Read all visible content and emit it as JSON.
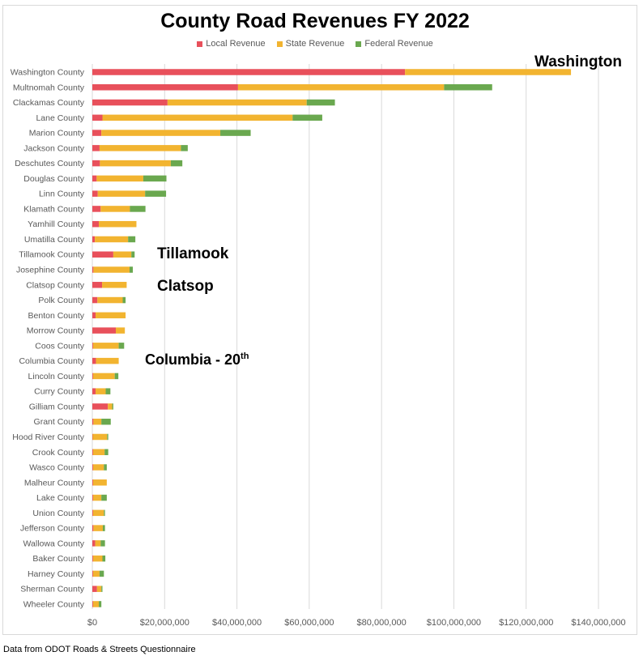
{
  "colors": {
    "local": "#e8505b",
    "state": "#f2b430",
    "federal": "#6aa84f",
    "grid": "#d9d9d9",
    "axis_text": "#595959"
  },
  "footnote": "Data from ODOT Roads & Streets Questionnaire",
  "callouts": {
    "washington": "Washington",
    "tillamook": "Tillamook",
    "clatsop": "Clatsop",
    "columbia": "Columbia - 20",
    "columbia_sup": "th"
  },
  "chart_data": {
    "type": "bar",
    "orientation": "horizontal",
    "stacked": true,
    "title": "County Road Revenues FY 2022",
    "legend_position": "top",
    "grid": true,
    "xlim": [
      0,
      140000000
    ],
    "x_ticks": [
      0,
      20000000,
      40000000,
      60000000,
      80000000,
      100000000,
      120000000,
      140000000
    ],
    "x_tick_labels": [
      "$0",
      "$20,000,000",
      "$40,000,000",
      "$60,000,000",
      "$80,000,000",
      "$100,000,000",
      "$120,000,000",
      "$140,000,000"
    ],
    "categories": [
      "Washington County",
      "Multnomah County",
      "Clackamas County",
      "Lane County",
      "Marion County",
      "Jackson County",
      "Deschutes County",
      "Douglas County",
      "Linn County",
      "Klamath County",
      "Yamhill County",
      "Umatilla County",
      "Tillamook County",
      "Josephine County",
      "Clatsop County",
      "Polk County",
      "Benton County",
      "Morrow County",
      "Coos County",
      "Columbia County",
      "Lincoln County",
      "Curry County",
      "Gilliam County",
      "Grant County",
      "Hood River County",
      "Crook County",
      "Wasco County",
      "Malheur County",
      "Lake County",
      "Union County",
      "Jefferson County",
      "Wallowa County",
      "Baker County",
      "Harney County",
      "Sherman County",
      "Wheeler County"
    ],
    "series": [
      {
        "name": "Local Revenue",
        "values": [
          86500000,
          40300000,
          20800000,
          2800000,
          2500000,
          2000000,
          2100000,
          1200000,
          1500000,
          2300000,
          1800000,
          700000,
          5800000,
          300000,
          2700000,
          1400000,
          900000,
          6500000,
          200000,
          1000000,
          200000,
          900000,
          4300000,
          300000,
          100000,
          200000,
          200000,
          200000,
          200000,
          200000,
          300000,
          800000,
          200000,
          200000,
          1300000,
          200000
        ]
      },
      {
        "name": "State Revenue",
        "values": [
          45900000,
          57000000,
          38500000,
          52600000,
          32900000,
          22500000,
          19600000,
          12900000,
          13100000,
          8100000,
          10400000,
          9200000,
          5000000,
          10000000,
          6800000,
          7000000,
          8300000,
          2500000,
          7100000,
          6300000,
          6000000,
          2800000,
          1200000,
          2200000,
          4000000,
          3200000,
          3000000,
          3800000,
          2300000,
          3000000,
          2600000,
          1500000,
          2600000,
          1800000,
          1200000,
          1600000
        ]
      },
      {
        "name": "Federal Revenue",
        "values": [
          0,
          13300000,
          7800000,
          8200000,
          8400000,
          1900000,
          3200000,
          6400000,
          5800000,
          4300000,
          0,
          2000000,
          900000,
          900000,
          0,
          800000,
          0,
          0,
          1500000,
          0,
          1000000,
          1300000,
          300000,
          2600000,
          300000,
          1000000,
          800000,
          0,
          1500000,
          300000,
          600000,
          1200000,
          800000,
          1200000,
          300000,
          700000
        ]
      }
    ]
  }
}
